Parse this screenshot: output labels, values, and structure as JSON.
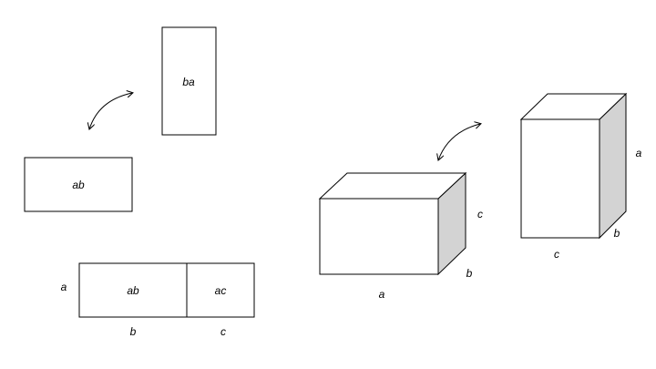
{
  "colors": {
    "stroke": "#000000",
    "background": "#ffffff",
    "shaded_face": "#d3d3d3"
  },
  "left": {
    "rect_horizontal_label": "ab",
    "rect_vertical_label": "ba",
    "combined": {
      "left_label": "ab",
      "right_label": "ac",
      "height_label": "a",
      "width_left_label": "b",
      "width_right_label": "c"
    }
  },
  "right": {
    "box1": {
      "width_label": "a",
      "height_label": "c",
      "depth_label": "b"
    },
    "box2": {
      "width_label": "c",
      "height_label": "a",
      "depth_label": "b"
    }
  }
}
